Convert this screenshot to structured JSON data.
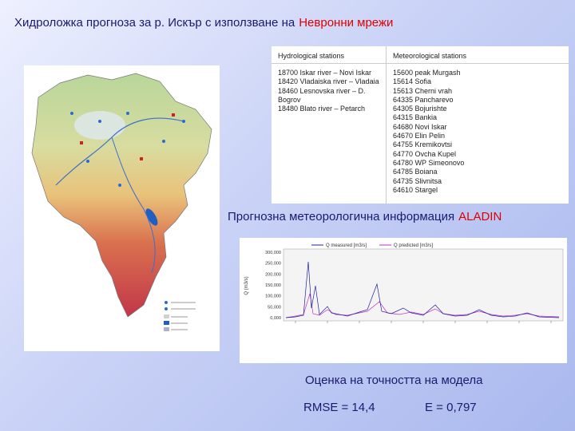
{
  "title": {
    "main": "Хидроложка прогноза за р. Искър с използване на",
    "highlight": "Невронни мрежи"
  },
  "stations_table": {
    "headers": [
      "Hydrological stations",
      "Meteorological stations"
    ],
    "hydrological": [
      "18700 Iskar river – Novi Iskar",
      "18420 Vladaiska river – Vladaia",
      "18460 Lesnovska river – D. Bogrov",
      "18480 Blato river – Petarch"
    ],
    "meteorological": [
      "15600 peak Murgash",
      "15614 Sofia",
      "15613 Cherni vrah",
      "64335 Pancharevo",
      "64305 Bojurishte",
      "64315 Bankia",
      "64680 Novi Iskar",
      "64670 Elin Pelin",
      "64755 Kremikovtsi",
      "64770 Ovcha Kupel",
      "64780 WP Simeonovo",
      "64785 Boiana",
      "64735 Slivnitsa",
      "64610 Stargel"
    ]
  },
  "forecast_heading": {
    "main": "Прогнозна метеорологична информация",
    "highlight": "ALADIN"
  },
  "hydrograph": {
    "legend": [
      "Q measured [m3/s]",
      "Q predicted [m3/s]"
    ],
    "y_axis_label": "Q (m3/s)",
    "y_tick_labels": [
      "300,000",
      "250,000",
      "200,000",
      "150,000",
      "100,000",
      "50,000",
      "0,000"
    ]
  },
  "accuracy": {
    "heading": "Оценка на точността на модела",
    "rmse": "RMSE = 14,4",
    "e": "E = 0,797"
  }
}
